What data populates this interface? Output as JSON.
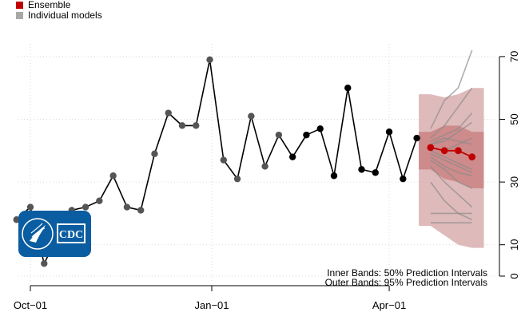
{
  "legend": {
    "ensemble_label": "Ensemble",
    "individual_label": "Individual models",
    "ensemble_color": "#c00000",
    "individual_color": "#a8a8a8"
  },
  "notes": {
    "inner": "Inner Bands: 50% Prediction Intervals",
    "outer": "Outer Bands: 95% Prediction Intervals"
  },
  "logo": {
    "text": "CDC",
    "icon": "hhs-eagle-icon",
    "color": "#0a5da0"
  },
  "chart_data": {
    "type": "line",
    "title": "",
    "xlabel": "",
    "ylabel": "",
    "grid": true,
    "legend_position": "top-left",
    "x_ticks": [
      "Oct−01",
      "Jan−01",
      "Apr−01"
    ],
    "x_tick_dates": [
      "2022-10-01",
      "2023-01-01",
      "2023-04-01"
    ],
    "y_ticks": [
      0,
      10,
      30,
      50,
      70
    ],
    "ylim": [
      0,
      75
    ],
    "observed": {
      "dates": [
        "2022-09-24",
        "2022-10-01",
        "2022-10-08",
        "2022-10-15",
        "2022-10-22",
        "2022-10-29",
        "2022-11-05",
        "2022-11-12",
        "2022-11-19",
        "2022-11-26",
        "2022-12-03",
        "2022-12-10",
        "2022-12-17",
        "2022-12-24",
        "2022-12-31",
        "2023-01-07",
        "2023-01-14",
        "2023-01-21",
        "2023-01-28",
        "2023-02-04",
        "2023-02-11",
        "2023-02-18",
        "2023-02-25",
        "2023-03-04",
        "2023-03-11",
        "2023-03-18",
        "2023-03-25",
        "2023-04-01",
        "2023-04-08",
        "2023-04-15"
      ],
      "values": [
        18,
        22,
        4,
        13,
        21,
        22,
        24,
        32,
        22,
        21,
        39,
        52,
        48,
        48,
        69,
        37,
        31,
        51,
        35,
        45,
        38,
        45,
        47,
        32,
        60,
        34,
        33,
        46,
        31,
        44
      ],
      "gray_points": 20
    },
    "ensemble": {
      "dates": [
        "2023-04-22",
        "2023-04-29",
        "2023-05-06",
        "2023-05-13"
      ],
      "median": [
        41,
        40,
        40,
        38
      ],
      "pi50_lower": [
        34,
        31,
        30,
        28
      ],
      "pi50_upper": [
        46,
        48,
        48,
        46
      ],
      "pi95_lower": [
        16,
        13,
        10,
        9
      ],
      "pi95_upper": [
        58,
        57,
        58,
        60
      ],
      "lightband_color": "#dcb2b2"
    },
    "individual_models": [
      [
        47,
        56,
        60,
        72
      ],
      [
        44,
        48,
        54,
        60
      ],
      [
        43,
        45,
        47,
        52
      ],
      [
        42,
        43,
        46,
        49
      ],
      [
        41,
        40,
        42,
        44
      ],
      [
        42,
        44,
        43,
        42
      ],
      [
        40,
        38,
        36,
        34
      ],
      [
        39,
        37,
        35,
        33
      ],
      [
        38,
        35,
        33,
        32
      ],
      [
        37,
        34,
        30,
        28
      ],
      [
        35,
        30,
        26,
        22
      ],
      [
        30,
        24,
        20,
        18
      ],
      [
        20,
        20,
        20,
        20
      ],
      [
        17,
        17,
        17,
        17
      ]
    ]
  }
}
